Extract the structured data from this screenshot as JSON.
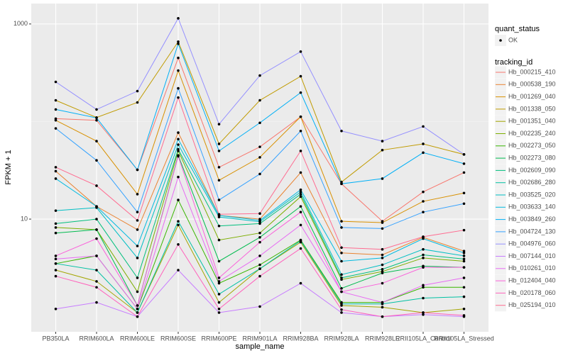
{
  "chart_data": {
    "type": "line",
    "x_label": "sample_name",
    "y_label": "FPKM + 1",
    "categories": [
      "PB350LA",
      "RRIM600LA",
      "RRIM600LE",
      "RRIM600SE",
      "RRIM600PE",
      "RRIM901LA",
      "RRIM928BA",
      "RRIM928LA",
      "RRIM928LE",
      "RRII105LA_Control",
      "RRII105LA_Stressed"
    ],
    "ylim": [
      0.7,
      1620
    ],
    "yticks": [
      10,
      1000
    ],
    "log_y": true,
    "grid": true,
    "legend_position": "right",
    "point_color": "#000000",
    "shape_legend": {
      "title": "quant_status",
      "labels": [
        "OK"
      ]
    },
    "color_legend_title": "tracking_id",
    "series": [
      {
        "name": "Hb_000215_410",
        "color": "#F8766D",
        "values": [
          107,
          103,
          32,
          449,
          34,
          55,
          112,
          23,
          9.5,
          19,
          30
        ]
      },
      {
        "name": "Hb_000538_190",
        "color": "#EA8331",
        "values": [
          31,
          13.5,
          7.8,
          77,
          10.9,
          10,
          30,
          4.5,
          4.3,
          6.5,
          4.7
        ]
      },
      {
        "name": "Hb_001269_040",
        "color": "#D89000",
        "values": [
          103,
          63,
          18,
          333,
          25,
          43,
          112,
          9.5,
          9.2,
          15.2,
          18.5
        ]
      },
      {
        "name": "Hb_001338_050",
        "color": "#C09B00",
        "values": [
          165,
          110,
          157,
          659,
          59,
          165,
          291,
          24,
          51,
          59,
          46
        ]
      },
      {
        "name": "Hb_001351_040",
        "color": "#A3A500",
        "values": [
          3.0,
          2.3,
          1.1,
          8.7,
          1.4,
          3.1,
          5.8,
          1.3,
          1.25,
          1.1,
          1.2
        ]
      },
      {
        "name": "Hb_002235_240",
        "color": "#7CAE00",
        "values": [
          8.2,
          7.8,
          1.8,
          50,
          6.1,
          7.2,
          17,
          2.4,
          2.9,
          4.0,
          3.7
        ]
      },
      {
        "name": "Hb_002273_050",
        "color": "#39B600",
        "values": [
          3.5,
          4.2,
          1.2,
          15.7,
          2.2,
          3.4,
          6.1,
          1.4,
          1.4,
          2.0,
          2.0
        ]
      },
      {
        "name": "Hb_002273_080",
        "color": "#00BB4E",
        "values": [
          7.2,
          7.8,
          1.3,
          45,
          3.7,
          6.5,
          13.5,
          1.95,
          2.8,
          3.3,
          3.2
        ]
      },
      {
        "name": "Hb_002609_090",
        "color": "#00BF7D",
        "values": [
          9.0,
          10,
          2.5,
          52,
          8.5,
          9.0,
          18,
          2.5,
          3.06,
          4.3,
          3.9
        ]
      },
      {
        "name": "Hb_002686_280",
        "color": "#00C1A3",
        "values": [
          3.5,
          3.0,
          1.1,
          9.5,
          1.7,
          3.1,
          6.0,
          1.35,
          1.35,
          1.55,
          1.6
        ]
      },
      {
        "name": "Hb_003525_020",
        "color": "#00BFC4",
        "values": [
          12.2,
          13.1,
          4.0,
          58,
          10.5,
          9.4,
          19,
          2.7,
          3.4,
          4.9,
          4.2
        ]
      },
      {
        "name": "Hb_003633_140",
        "color": "#00BAE0",
        "values": [
          26,
          13.5,
          5.3,
          66,
          10.9,
          9.7,
          20,
          3.7,
          4.0,
          6.3,
          4.5
        ]
      },
      {
        "name": "Hb_003849_260",
        "color": "#00B0F6",
        "values": [
          133,
          109,
          32,
          627,
          50,
          97,
          198,
          23,
          26,
          48,
          37
        ]
      },
      {
        "name": "Hb_004724_130",
        "color": "#35A2FF",
        "values": [
          85,
          40,
          11.8,
          219,
          15.7,
          29,
          80,
          8.2,
          8.0,
          11.8,
          14.4
        ]
      },
      {
        "name": "Hb_004976_060",
        "color": "#9590FF",
        "values": [
          255,
          133,
          205,
          1143,
          94,
          296,
          521,
          80,
          63,
          89,
          46
        ]
      },
      {
        "name": "Hb_007144_010",
        "color": "#C77CFF",
        "values": [
          1.2,
          1.4,
          1.0,
          3.0,
          1.1,
          1.27,
          2.2,
          1.1,
          1.0,
          1.05,
          1.0
        ]
      },
      {
        "name": "Hb_010261_010",
        "color": "#E76BF3",
        "values": [
          3.9,
          4.2,
          1.2,
          27,
          2.3,
          4.2,
          8.7,
          1.8,
          1.4,
          2.1,
          2.5
        ]
      },
      {
        "name": "Hb_012404_040",
        "color": "#FA62DB",
        "values": [
          4.2,
          6.3,
          1.3,
          44,
          2.5,
          5.8,
          11.8,
          1.8,
          2.2,
          3.2,
          3.2
        ]
      },
      {
        "name": "Hb_020178_060",
        "color": "#FF62BC",
        "values": [
          2.6,
          2.0,
          1.0,
          5.5,
          1.2,
          2.6,
          5.0,
          1.18,
          1.0,
          1.1,
          1.03
        ]
      },
      {
        "name": "Hb_025194_010",
        "color": "#FF6C91",
        "values": [
          34,
          22,
          9.7,
          176,
          11.2,
          11.4,
          50,
          5.1,
          4.9,
          6.6,
          7.7
        ]
      }
    ]
  }
}
